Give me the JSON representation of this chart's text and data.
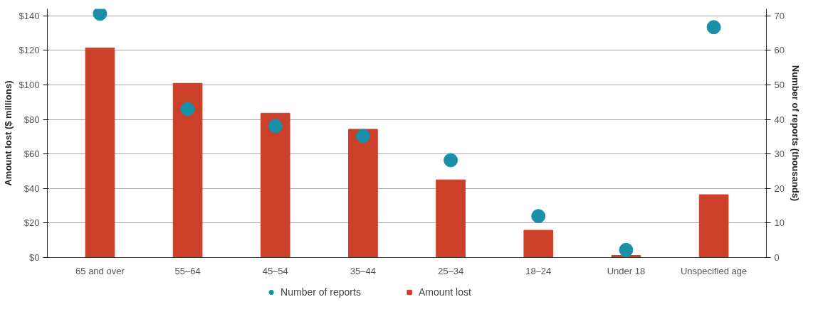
{
  "chart_data": {
    "type": "bar",
    "categories": [
      "65 and over",
      "55–64",
      "45–54",
      "35–44",
      "25–34",
      "18–24",
      "Under 18",
      "Unspecified age"
    ],
    "series": [
      {
        "name": "Number of reports",
        "type": "scatter",
        "axis": "y2",
        "color": "#1a8fa8",
        "values": [
          70.6,
          43,
          38.1,
          35.2,
          28.2,
          12.0,
          2.2,
          66.7
        ]
      },
      {
        "name": "Amount lost",
        "color": "#cc3f29",
        "values": [
          121.4,
          100.9,
          83.6,
          74.3,
          45,
          15.8,
          1.2,
          36.4
        ]
      }
    ],
    "ylabel": "Amount lost ($ millions)",
    "y2label": "Number of reports (thousands)",
    "ylim": [
      0,
      144
    ],
    "yticks": [
      {
        "value": 0,
        "label": "$0"
      },
      {
        "value": 20,
        "label": "$20"
      },
      {
        "value": 40,
        "label": "$40"
      },
      {
        "value": 60,
        "label": "$60"
      },
      {
        "value": 80,
        "label": "$80"
      },
      {
        "value": 100,
        "label": "$100"
      },
      {
        "value": 120,
        "label": "$120"
      },
      {
        "value": 140,
        "label": "$140"
      }
    ],
    "y2lim": [
      0,
      72
    ],
    "y2ticks": [
      0,
      10,
      20,
      30,
      40,
      50,
      60,
      70
    ],
    "grid": "y",
    "legend": "bottom",
    "marker": "circle"
  }
}
